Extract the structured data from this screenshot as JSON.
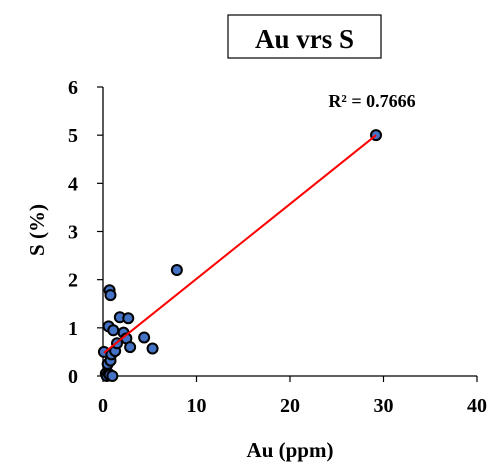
{
  "chart_data": {
    "type": "scatter",
    "title": "Au vrs S",
    "xlabel": "Au (ppm)",
    "ylabel": "S (%)",
    "xlim": [
      0,
      40
    ],
    "ylim": [
      0,
      6
    ],
    "x_ticks": [
      0,
      10,
      20,
      30,
      40
    ],
    "y_ticks": [
      0,
      1,
      2,
      3,
      4,
      5,
      6
    ],
    "grid": false,
    "legend": "none",
    "annotation": "R² = 0.7666",
    "marker_fill": "#4472c4",
    "marker_edge": "#000000",
    "trendline_color": "#ff0000",
    "trendline": {
      "x": [
        0.1,
        29.2
      ],
      "y": [
        0.48,
        5.0
      ]
    },
    "points": [
      {
        "x": 0.1,
        "y": 0.5
      },
      {
        "x": 0.3,
        "y": 0.05
      },
      {
        "x": 0.4,
        "y": 0.0
      },
      {
        "x": 0.5,
        "y": 0.25
      },
      {
        "x": 0.6,
        "y": 0.05
      },
      {
        "x": 0.7,
        "y": 0.02
      },
      {
        "x": 0.6,
        "y": 1.03
      },
      {
        "x": 0.7,
        "y": 1.78
      },
      {
        "x": 0.8,
        "y": 1.68
      },
      {
        "x": 0.8,
        "y": 0.32
      },
      {
        "x": 0.9,
        "y": 0.45
      },
      {
        "x": 1.0,
        "y": 0.0
      },
      {
        "x": 1.1,
        "y": 0.95
      },
      {
        "x": 1.3,
        "y": 0.52
      },
      {
        "x": 1.5,
        "y": 0.68
      },
      {
        "x": 1.8,
        "y": 1.22
      },
      {
        "x": 2.2,
        "y": 0.9
      },
      {
        "x": 2.5,
        "y": 0.78
      },
      {
        "x": 2.7,
        "y": 1.2
      },
      {
        "x": 2.9,
        "y": 0.6
      },
      {
        "x": 4.4,
        "y": 0.8
      },
      {
        "x": 5.3,
        "y": 0.57
      },
      {
        "x": 7.9,
        "y": 2.2
      },
      {
        "x": 29.2,
        "y": 5.0
      }
    ]
  }
}
